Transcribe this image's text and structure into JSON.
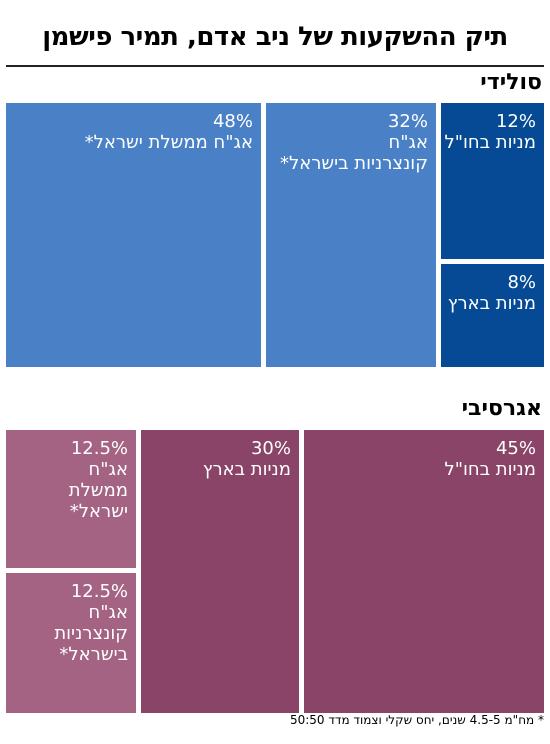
{
  "title": "תיק ההשקעות של ניב אדם, תמיר פישמן",
  "footnote": "* מח\"מ 4.5-5 שנים, יחס שקלי וצמוד מדד 50:50",
  "colors": {
    "solid_light": "#4a80c6",
    "solid_dark": "#064a96",
    "agg_light": "#a46383",
    "agg_dark": "#8a4467"
  },
  "chart_data": [
    {
      "type": "treemap",
      "title": "סולידי",
      "items": [
        {
          "pct_label": "48%",
          "label": "אג\"ח ממשלת ישראל*",
          "value": 48
        },
        {
          "pct_label": "32%",
          "label": "אג\"ח\nקונצרניות בישראל*",
          "value": 32
        },
        {
          "pct_label": "12%",
          "label": "מניות בחו\"ל",
          "value": 12
        },
        {
          "pct_label": "8%",
          "label": "מניות בארץ",
          "value": 8
        }
      ]
    },
    {
      "type": "treemap",
      "title": "אגרסיבי",
      "items": [
        {
          "pct_label": "45%",
          "label": "מניות בחו\"ל",
          "value": 45
        },
        {
          "pct_label": "30%",
          "label": "מניות בארץ",
          "value": 30
        },
        {
          "pct_label": "12.5%",
          "label": "אג\"ח\nממשלת ישראל*",
          "value": 12.5
        },
        {
          "pct_label": "12.5%",
          "label": "אג\"ח\nקונצרניות\nבישראל*",
          "value": 12.5
        }
      ]
    }
  ]
}
